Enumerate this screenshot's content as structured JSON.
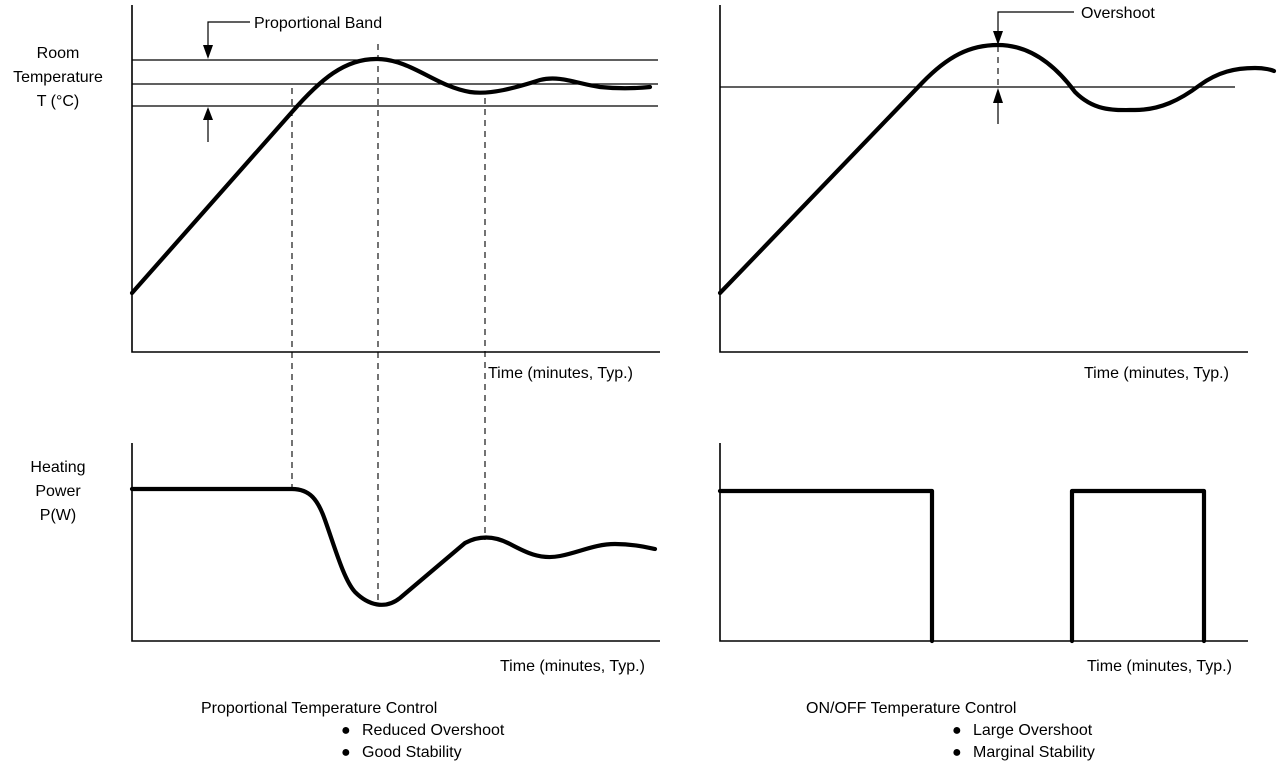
{
  "left_panel": {
    "temp_ylabel": [
      "Room",
      "Temperature",
      "T (°C)"
    ],
    "power_ylabel": [
      "Heating",
      "Power",
      "P(W)"
    ],
    "band_label": "Proportional Band",
    "temp_xlabel": "Time (minutes, Typ.)",
    "power_xlabel": "Time (minutes, Typ.)",
    "caption_title": "Proportional Temperature Control",
    "caption_bullets": [
      "Reduced Overshoot",
      "Good Stability"
    ]
  },
  "right_panel": {
    "overshoot_label": "Overshoot",
    "temp_xlabel": "Time (minutes, Typ.)",
    "power_xlabel": "Time (minutes, Typ.)",
    "caption_title": "ON/OFF Temperature Control",
    "caption_bullets": [
      "Large Overshoot",
      "Marginal Stability"
    ]
  },
  "bullet_glyph": "●"
}
